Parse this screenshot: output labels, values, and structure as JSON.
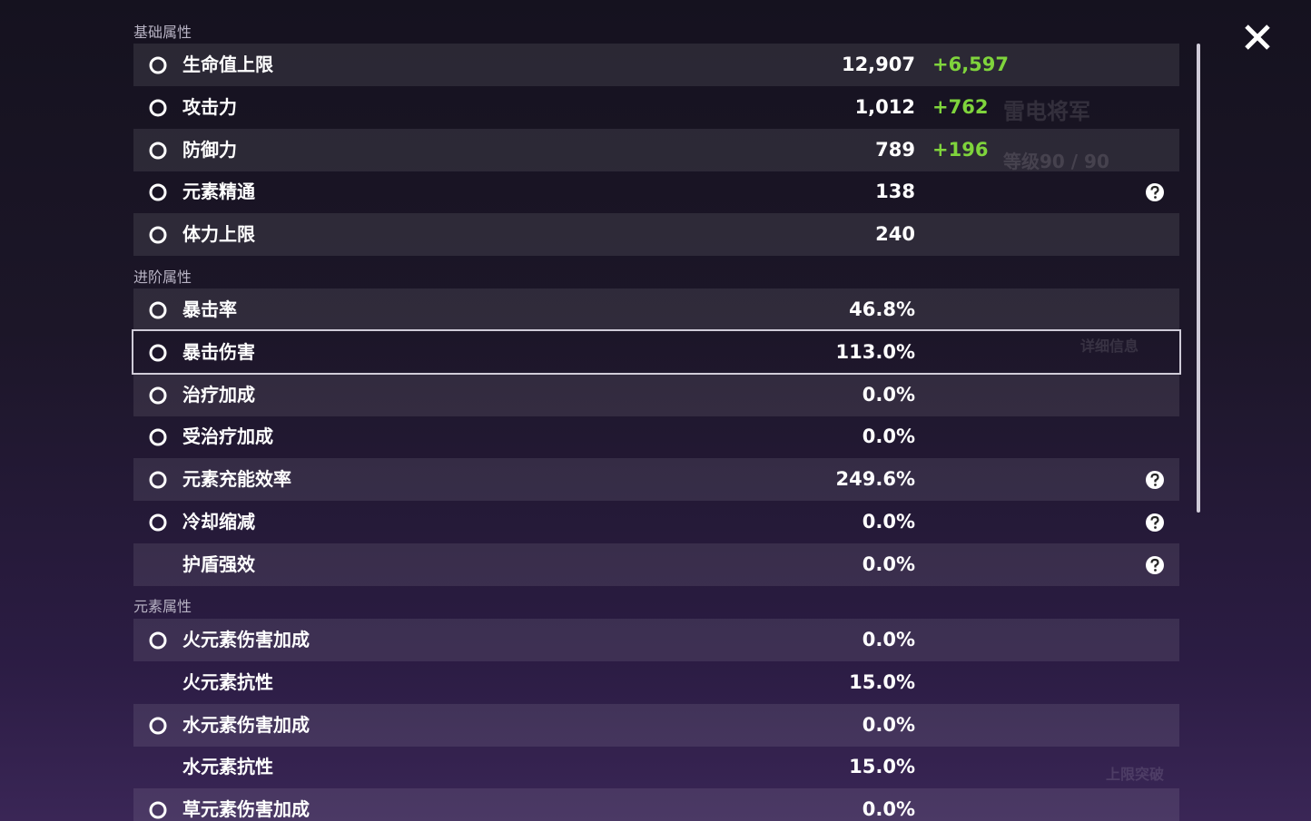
{
  "sections": [
    {
      "title": "基础属性",
      "rows": [
        {
          "label": "生命值上限",
          "value": "12,907",
          "bonus": "+6,597"
        },
        {
          "label": "攻击力",
          "value": "1,012",
          "bonus": "+762"
        },
        {
          "label": "防御力",
          "value": "789",
          "bonus": "+196"
        },
        {
          "label": "元素精通",
          "value": "138",
          "help": true
        },
        {
          "label": "体力上限",
          "value": "240"
        }
      ]
    },
    {
      "title": "进阶属性",
      "rows": [
        {
          "label": "暴击率",
          "value": "46.8%"
        },
        {
          "label": "暴击伤害",
          "value": "113.0%",
          "selected": true
        },
        {
          "label": "治疗加成",
          "value": "0.0%"
        },
        {
          "label": "受治疗加成",
          "value": "0.0%"
        },
        {
          "label": "元素充能效率",
          "value": "249.6%",
          "help": true
        },
        {
          "label": "冷却缩减",
          "value": "0.0%",
          "help": true
        },
        {
          "label": "护盾强效",
          "value": "0.0%",
          "help": true
        }
      ]
    },
    {
      "title": "元素属性",
      "rows": [
        {
          "label": "火元素伤害加成",
          "value": "0.0%"
        },
        {
          "label": "火元素抗性",
          "value": "15.0%"
        },
        {
          "label": "水元素伤害加成",
          "value": "0.0%"
        },
        {
          "label": "水元素抗性",
          "value": "15.0%"
        },
        {
          "label": "草元素伤害加成",
          "value": "0.0%"
        }
      ]
    }
  ],
  "background": {
    "name": "雷电将军",
    "level": "等级90 / 90",
    "details": "详细信息",
    "ascend": "上限突破"
  }
}
